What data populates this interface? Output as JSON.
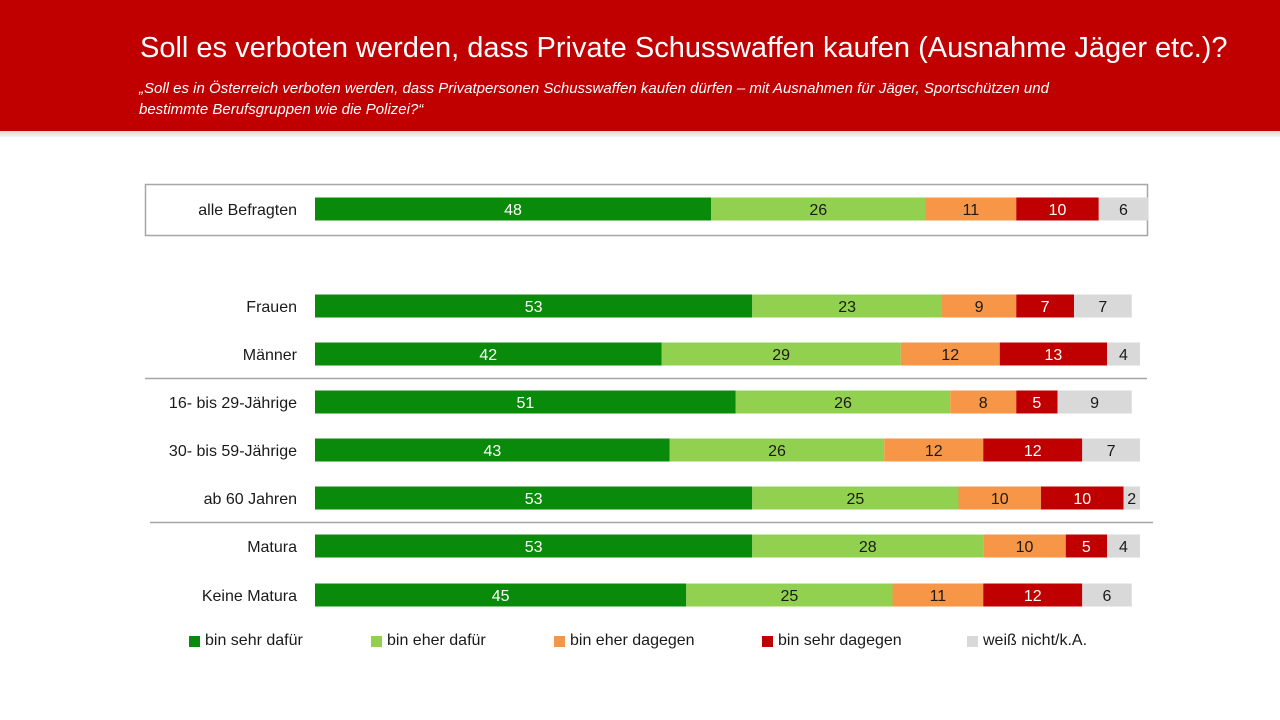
{
  "header": {
    "title": "Soll es verboten werden, dass Private Schusswaffen kaufen (Ausnahme Jäger etc.)?",
    "subtitle": "„Soll es in Österreich verboten werden, dass Privatpersonen Schusswaffen kaufen dürfen – mit Ausnahmen für Jäger, Sportschützen und bestimmte Berufsgruppen wie die Polizei?“"
  },
  "colors": {
    "header_bg": "#c00000",
    "bin sehr dafür": "#0a8a0a",
    "bin eher dafür": "#92d050",
    "bin eher dagegen": "#f79646",
    "bin sehr dagegen": "#c00000",
    "weiß nicht/k.A.": "#d9d9d9"
  },
  "chart_data": {
    "type": "bar",
    "orientation": "horizontal",
    "stacked": true,
    "xlim": [
      0,
      100
    ],
    "legend_position": "bottom",
    "categories": [
      "alle Befragten",
      "Frauen",
      "Männer",
      "16- bis 29-Jährige",
      "30- bis 59-Jährige",
      "ab 60 Jahren",
      "Matura",
      "Keine Matura"
    ],
    "series": [
      {
        "name": "bin sehr dafür",
        "values": [
          48,
          53,
          42,
          51,
          43,
          53,
          53,
          45
        ]
      },
      {
        "name": "bin eher dafür",
        "values": [
          26,
          23,
          29,
          26,
          26,
          25,
          28,
          25
        ]
      },
      {
        "name": "bin eher dagegen",
        "values": [
          11,
          9,
          12,
          8,
          12,
          10,
          10,
          11
        ]
      },
      {
        "name": "bin sehr dagegen",
        "values": [
          10,
          7,
          13,
          5,
          12,
          10,
          5,
          12
        ]
      },
      {
        "name": "weiß nicht/k.A.",
        "values": [
          6,
          7,
          4,
          9,
          7,
          2,
          4,
          6
        ]
      }
    ]
  }
}
